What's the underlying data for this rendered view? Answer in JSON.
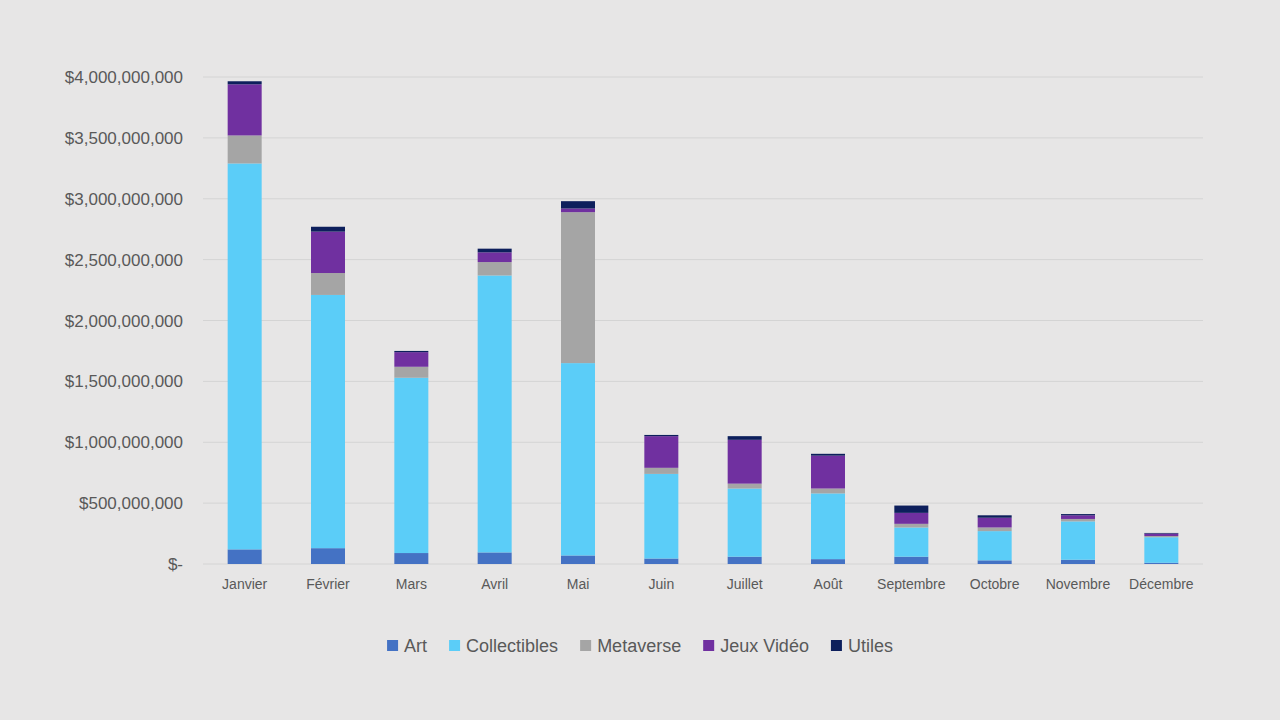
{
  "chart_data": {
    "type": "bar",
    "stacked": true,
    "grid": true,
    "legend": "bottom",
    "categories": [
      "Janvier",
      "Février",
      "Mars",
      "Avril",
      "Mai",
      "Juin",
      "Juillet",
      "Août",
      "Septembre",
      "Octobre",
      "Novembre",
      "Décembre"
    ],
    "ylim": [
      0,
      4000000000
    ],
    "yticks": [
      {
        "value": 0,
        "label": "$-"
      },
      {
        "value": 500000000,
        "label": "$500,000,000"
      },
      {
        "value": 1000000000,
        "label": "$1,000,000,000"
      },
      {
        "value": 1500000000,
        "label": "$1,500,000,000"
      },
      {
        "value": 2000000000,
        "label": "$2,000,000,000"
      },
      {
        "value": 2500000000,
        "label": "$2,500,000,000"
      },
      {
        "value": 3000000000,
        "label": "$3,000,000,000"
      },
      {
        "value": 3500000000,
        "label": "$3,500,000,000"
      },
      {
        "value": 4000000000,
        "label": "$4,000,000,000"
      }
    ],
    "series": [
      {
        "name": "Art",
        "color": "#4472c4",
        "values": [
          120000000,
          130000000,
          90000000,
          95000000,
          70000000,
          45000000,
          60000000,
          40000000,
          60000000,
          30000000,
          35000000,
          10000000
        ]
      },
      {
        "name": "Collectibles",
        "color": "#5bcdf8",
        "values": [
          3170000000,
          2080000000,
          1440000000,
          2275000000,
          1580000000,
          695000000,
          560000000,
          540000000,
          240000000,
          240000000,
          315000000,
          210000000
        ]
      },
      {
        "name": "Metaverse",
        "color": "#a5a5a5",
        "values": [
          230000000,
          180000000,
          90000000,
          110000000,
          1240000000,
          50000000,
          40000000,
          40000000,
          30000000,
          30000000,
          20000000,
          10000000
        ]
      },
      {
        "name": "Jeux Vidéo",
        "color": "#7030a0",
        "values": [
          420000000,
          340000000,
          120000000,
          80000000,
          30000000,
          260000000,
          360000000,
          270000000,
          90000000,
          80000000,
          30000000,
          20000000
        ]
      },
      {
        "name": "Utiles",
        "color": "#0d1f5c",
        "values": [
          25000000,
          40000000,
          10000000,
          30000000,
          60000000,
          10000000,
          30000000,
          15000000,
          60000000,
          20000000,
          10000000,
          5000000
        ]
      }
    ]
  }
}
